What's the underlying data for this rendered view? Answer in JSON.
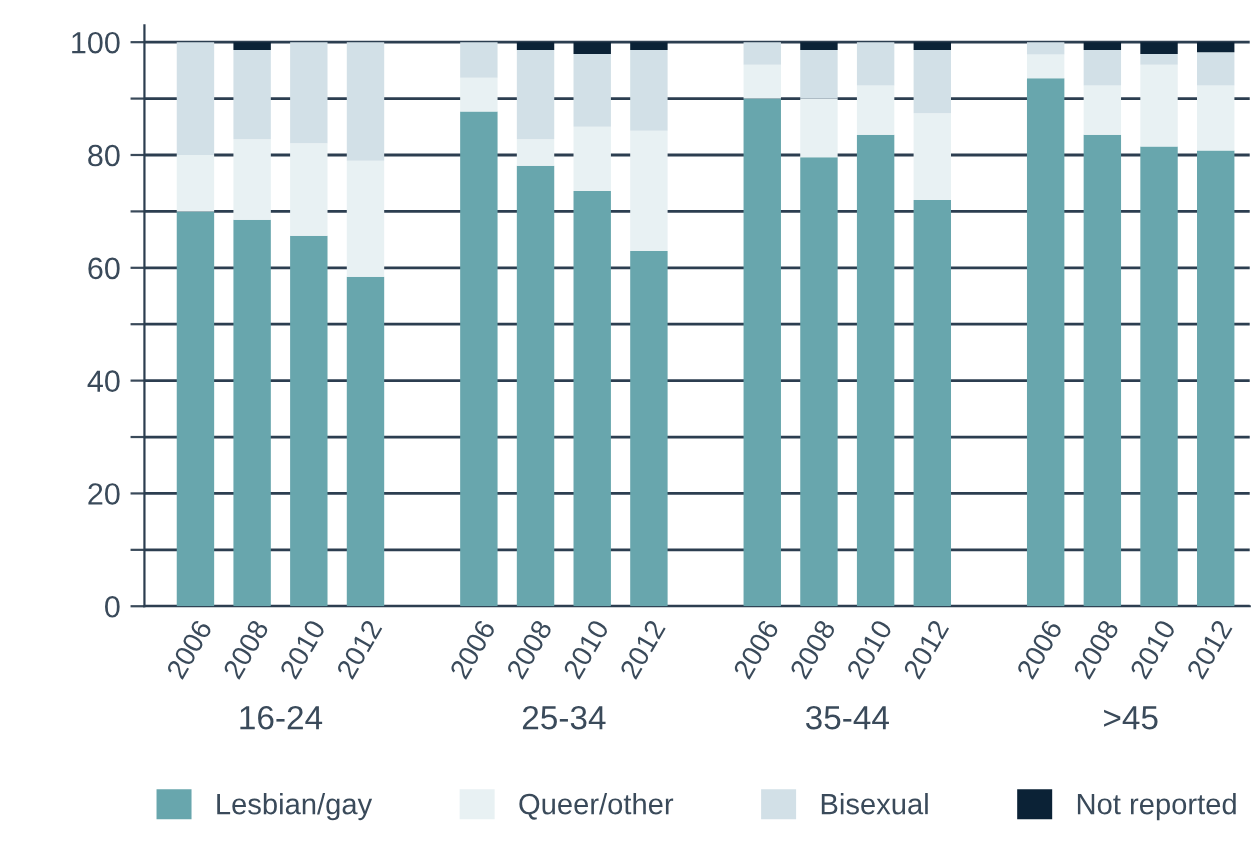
{
  "chart_data": {
    "type": "bar",
    "stacked": true,
    "categories": [
      "2006",
      "2008",
      "2010",
      "2012",
      null,
      "2006",
      "2008",
      "2010",
      "2012",
      null,
      "2006",
      "2008",
      "2010",
      "2012",
      null,
      "2006",
      "2008",
      "2010",
      "2012"
    ],
    "series": [
      {
        "name": "Lesbian/gay",
        "color": "#68a6ad",
        "values": [
          70,
          68.5,
          65.7,
          58.4,
          null,
          87.7,
          78.1,
          73.6,
          63,
          null,
          90,
          79.6,
          83.6,
          72,
          null,
          93.6,
          83.6,
          81.5,
          80.8
        ]
      },
      {
        "name": "Queer/other",
        "color": "#e8f1f3",
        "values": [
          10,
          14.3,
          16.4,
          20.6,
          null,
          6,
          4.7,
          11.4,
          21.3,
          null,
          6,
          10.4,
          8.7,
          15.4,
          null,
          4.2,
          8.7,
          14.5,
          11.5
        ]
      },
      {
        "name": "Bisexual",
        "color": "#d2e0e7",
        "values": [
          20,
          15.8,
          17.9,
          21,
          null,
          6.3,
          15.8,
          12.9,
          14.3,
          null,
          4,
          8.6,
          7.7,
          11.2,
          null,
          2.2,
          6.3,
          1.9,
          5.9
        ]
      },
      {
        "name": "Not reported",
        "color": "#0b2236",
        "values": [
          0,
          1.4,
          0,
          0,
          null,
          0,
          1.4,
          2.1,
          1.4,
          null,
          0,
          1.4,
          0,
          1.4,
          null,
          0,
          1.4,
          2.1,
          1.8
        ]
      }
    ],
    "annotations": [
      "16-24",
      "25-34",
      "35-44",
      ">45"
    ],
    "ylim": [
      0,
      103
    ],
    "yticks": [
      0,
      {
        "value": 10,
        "label": null
      },
      20,
      {
        "value": 30,
        "label": null
      },
      40,
      {
        "value": 50,
        "label": null
      },
      60,
      {
        "value": 70,
        "label": null
      },
      80,
      {
        "value": 90,
        "label": null
      },
      100
    ],
    "grid": "y",
    "legend": "bottom"
  }
}
